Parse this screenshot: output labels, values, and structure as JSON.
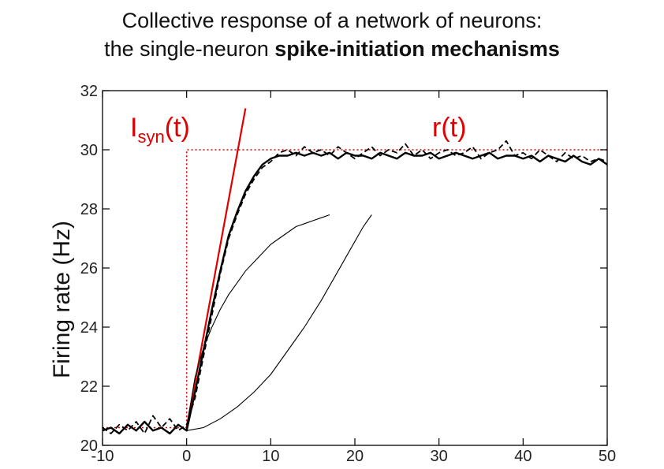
{
  "title": {
    "line1": "Collective response of a network of neurons:",
    "line2_plain": "the single-neuron ",
    "line2_bold": "spike-initiation mechanisms"
  },
  "chart_data": {
    "type": "line",
    "xlim": [
      -10,
      50
    ],
    "ylim": [
      20,
      32
    ],
    "xticks": [
      -10,
      0,
      10,
      20,
      30,
      40,
      50
    ],
    "yticks": [
      20,
      22,
      24,
      26,
      28,
      30,
      32
    ],
    "xlabel": "",
    "ylabel": "Firing rate (Hz)",
    "grid": false,
    "annotations": {
      "isyn_main": "I",
      "isyn_sub": "syn",
      "isyn_tail": "(t)",
      "rt": "r(t)"
    },
    "colors": {
      "red": "#e00000",
      "black": "#000000"
    },
    "series": [
      {
        "style": "red-dotted",
        "x": [
          -10,
          0,
          0,
          50
        ],
        "y": [
          20.6,
          20.6,
          30,
          30
        ]
      },
      {
        "style": "red-solid",
        "x": [
          0,
          7
        ],
        "y": [
          20.6,
          31.4
        ]
      },
      {
        "style": "black-thick",
        "x": [
          -10,
          -9,
          -8,
          -7,
          -6,
          -5,
          -4,
          -3,
          -2,
          -1,
          0,
          1,
          2,
          3,
          4,
          5,
          6,
          7,
          8,
          9,
          10,
          11,
          12,
          13,
          14,
          15,
          16,
          17,
          18,
          19,
          20,
          21,
          22,
          23,
          24,
          25,
          26,
          27,
          28,
          29,
          30,
          31,
          32,
          33,
          34,
          35,
          36,
          37,
          38,
          39,
          40,
          41,
          42,
          43,
          44,
          45,
          46,
          47,
          48,
          49,
          50
        ],
        "y": [
          20.5,
          20.6,
          20.4,
          20.7,
          20.5,
          20.8,
          20.5,
          20.6,
          20.4,
          20.7,
          20.5,
          21.8,
          23.2,
          24.6,
          25.9,
          27.1,
          27.9,
          28.6,
          29.1,
          29.5,
          29.7,
          29.8,
          29.8,
          29.9,
          29.8,
          29.9,
          29.8,
          29.9,
          29.7,
          29.9,
          29.8,
          29.8,
          29.7,
          29.9,
          29.8,
          29.7,
          29.9,
          29.8,
          29.8,
          29.9,
          29.7,
          29.8,
          29.9,
          29.8,
          29.7,
          29.8,
          29.9,
          29.7,
          29.8,
          29.8,
          29.7,
          29.8,
          29.6,
          29.8,
          29.7,
          29.6,
          29.8,
          29.6,
          29.5,
          29.7,
          29.5
        ]
      },
      {
        "style": "black-dashed",
        "x": [
          -10,
          -9,
          -8,
          -7,
          -6,
          -5,
          -4,
          -3,
          -2,
          -1,
          0,
          1,
          2,
          3,
          4,
          5,
          6,
          7,
          8,
          9,
          10,
          11,
          12,
          13,
          14,
          15,
          16,
          17,
          18,
          19,
          20,
          21,
          22,
          23,
          24,
          25,
          26,
          27,
          28,
          29,
          30,
          31,
          32,
          33,
          34,
          35,
          36,
          37,
          38,
          39,
          40,
          41,
          42,
          43,
          44,
          45,
          46,
          47,
          48,
          49,
          50
        ],
        "y": [
          20.6,
          20.4,
          20.7,
          20.5,
          20.8,
          20.4,
          21.0,
          20.6,
          20.9,
          20.5,
          20.7,
          21.6,
          23.0,
          24.4,
          25.8,
          27.0,
          27.8,
          28.5,
          29.0,
          29.4,
          29.6,
          29.9,
          30.0,
          29.8,
          30.1,
          29.9,
          30.0,
          29.8,
          30.1,
          29.9,
          29.7,
          29.9,
          30.1,
          29.8,
          30.0,
          29.9,
          30.2,
          29.8,
          30.0,
          29.7,
          29.9,
          30.0,
          29.8,
          29.9,
          30.1,
          29.7,
          29.9,
          30.0,
          30.3,
          29.8,
          29.9,
          29.7,
          30.0,
          29.8,
          29.6,
          29.9,
          29.7,
          29.8,
          29.6,
          29.7,
          29.6
        ]
      },
      {
        "style": "black-thin",
        "x": [
          0,
          1,
          2,
          3,
          4,
          5,
          6,
          7,
          8,
          9,
          10,
          11,
          12,
          13,
          14,
          15,
          16,
          17
        ],
        "y": [
          20.6,
          22.3,
          23.3,
          24.0,
          24.6,
          25.1,
          25.5,
          25.9,
          26.2,
          26.5,
          26.8,
          27.0,
          27.2,
          27.4,
          27.5,
          27.6,
          27.7,
          27.8
        ]
      },
      {
        "style": "black-thin",
        "x": [
          0,
          2,
          4,
          6,
          8,
          10,
          12,
          14,
          16,
          18,
          20,
          21,
          22
        ],
        "y": [
          20.5,
          20.6,
          20.9,
          21.3,
          21.8,
          22.4,
          23.2,
          24.0,
          24.9,
          25.9,
          26.9,
          27.4,
          27.8
        ]
      }
    ]
  }
}
